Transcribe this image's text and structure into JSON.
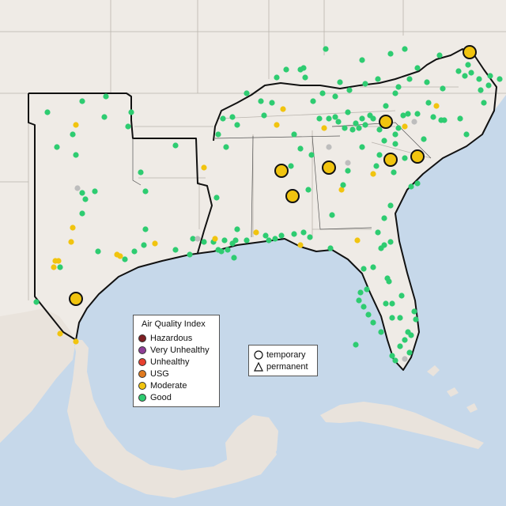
{
  "map": {
    "background_color": "#efebe6",
    "water_color": "#c6d8ea",
    "region_outline_color": "#111111",
    "state_border_color": "#b9b4ad"
  },
  "legend": {
    "title": "Air Quality Index",
    "items": [
      {
        "label": "Hazardous",
        "color": "#7e1f23"
      },
      {
        "label": "Very Unhealthy",
        "color": "#8f3f97"
      },
      {
        "label": "Unhealthy",
        "color": "#e8402f"
      },
      {
        "label": "USG",
        "color": "#e07a1f"
      },
      {
        "label": "Moderate",
        "color": "#f1c40f"
      },
      {
        "label": "Good",
        "color": "#2ecc71"
      }
    ]
  },
  "type_legend": {
    "items": [
      {
        "label": "temporary",
        "symbol": "circle-icon"
      },
      {
        "label": "permanent",
        "symbol": "triangle-icon"
      }
    ]
  },
  "status_colors": {
    "good": "#2ecc71",
    "moderate": "#f1c40f",
    "no_data": "#bdbdbd"
  }
}
